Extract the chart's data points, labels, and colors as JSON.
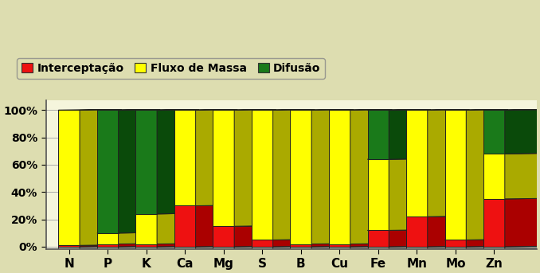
{
  "categories": [
    "N",
    "P",
    "K",
    "Ca",
    "Mg",
    "S",
    "B",
    "Cu",
    "Fe",
    "Mn",
    "Mo",
    "Zn"
  ],
  "interceptacao": [
    1,
    2,
    2,
    30,
    15,
    5,
    2,
    2,
    12,
    22,
    5,
    35
  ],
  "fluxo_massa": [
    99,
    8,
    22,
    70,
    85,
    95,
    98,
    98,
    52,
    78,
    95,
    33
  ],
  "difusao": [
    0,
    90,
    76,
    0,
    0,
    0,
    0,
    0,
    36,
    0,
    0,
    32
  ],
  "color_interceptacao": "#EE1111",
  "color_fluxo": "#FFFF00",
  "color_difusao": "#1A7A1A",
  "color_interceptacao_dark": "#AA0000",
  "color_fluxo_dark": "#AAAA00",
  "color_difusao_dark": "#0A4A0A",
  "legend_labels": [
    "Interceptação",
    "Fluxo de Massa",
    "Difusão"
  ],
  "ylabel_ticks": [
    "0%",
    "20%",
    "40%",
    "60%",
    "80%",
    "100%"
  ],
  "bg_top": "#DDDDB0",
  "bg_bottom": "#EEEEC8",
  "plot_bg": "#F5F5DC",
  "bar_edge_color": "#222222",
  "bar_width": 0.55,
  "depth": 0.18,
  "ylim": [
    0,
    100
  ],
  "grid_color": "#AAAAAA",
  "floor_color": "#B0B0A0",
  "floor_top_color": "#D0D0C0"
}
